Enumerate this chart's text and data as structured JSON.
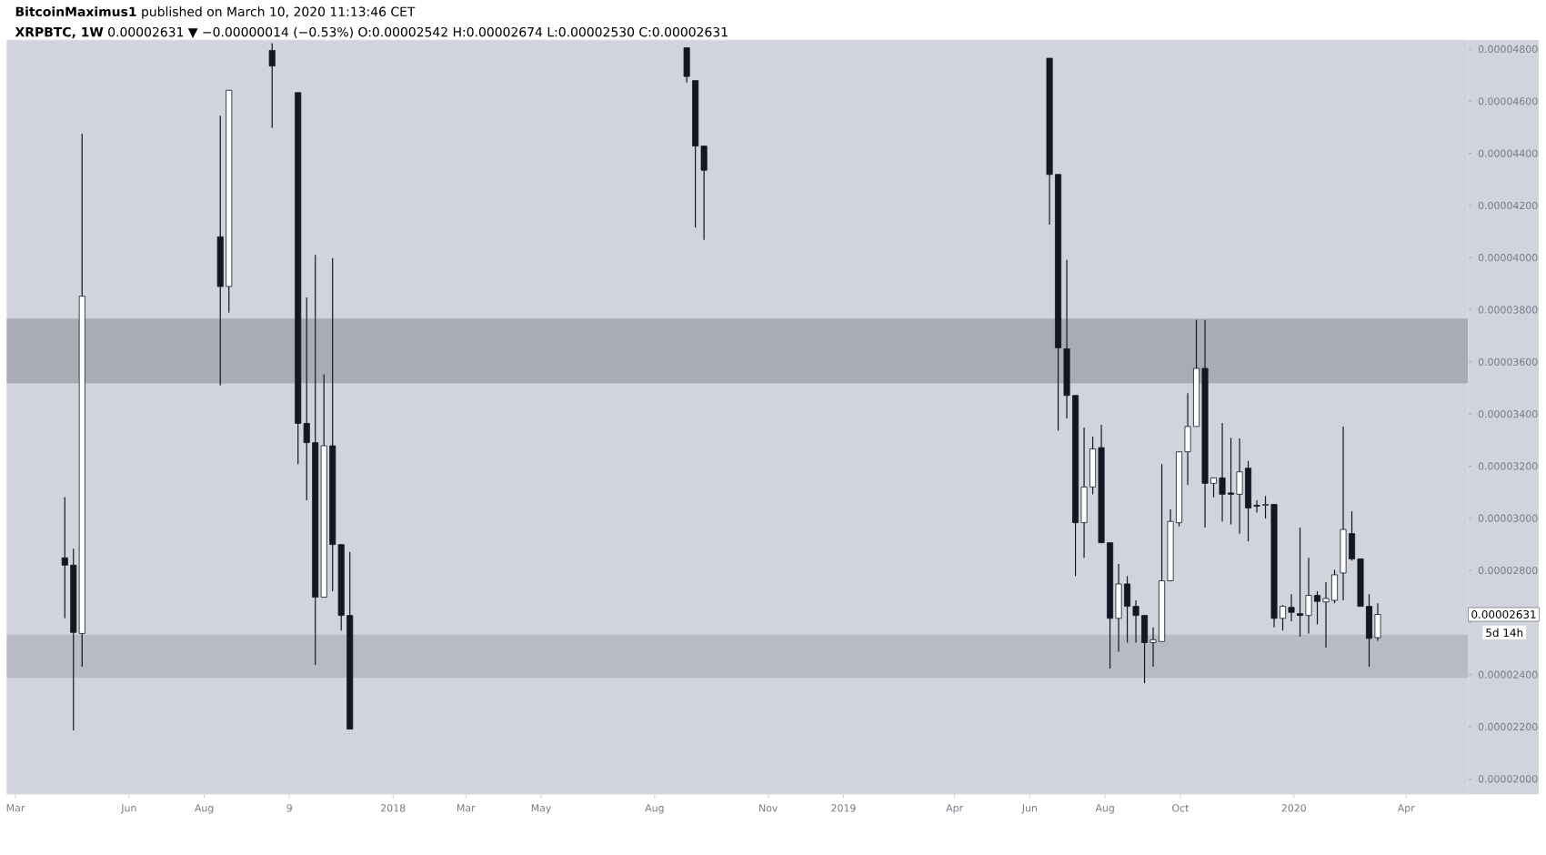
{
  "chart_data": {
    "type": "candlestick",
    "title": "**BitcoinMaximus1** published on March 10, 2020 11:13:46 CET",
    "subtitle": "**XRPBTC, 1W** 0.00002631 ▼ −0.00000014 (−0.53%) O:0.00002542 H:0.00002674 L:0.00002530 C:0.00002631",
    "x": [
      "2017-04-10",
      "2017-04-17",
      "2017-04-24",
      "2017-08-14",
      "2017-08-21",
      "2017-09-25",
      "2017-10-16",
      "2017-10-23",
      "2017-10-30",
      "2017-11-06",
      "2017-11-13",
      "2017-11-20",
      "2017-11-27",
      "2018-08-27",
      "2018-09-03",
      "2018-09-10",
      "2019-06-17",
      "2019-06-24",
      "2019-07-01",
      "2019-07-08",
      "2019-07-15",
      "2019-07-22",
      "2019-07-29",
      "2019-08-05",
      "2019-08-12",
      "2019-08-19",
      "2019-08-26",
      "2019-09-02",
      "2019-09-09",
      "2019-09-16",
      "2019-09-23",
      "2019-09-30",
      "2019-10-07",
      "2019-10-14",
      "2019-10-21",
      "2019-10-28",
      "2019-11-04",
      "2019-11-11",
      "2019-11-18",
      "2019-11-25",
      "2019-12-02",
      "2019-12-09",
      "2019-12-16",
      "2019-12-23",
      "2019-12-30",
      "2020-01-06",
      "2020-01-13",
      "2020-01-20",
      "2020-01-27",
      "2020-02-03",
      "2020-02-10",
      "2020-02-17",
      "2020-02-24",
      "2020-03-02",
      "2020-03-09"
    ],
    "ohlc": [
      [
        2.848e-05,
        3.081e-05,
        2.616e-05,
        2.82e-05
      ],
      [
        2.82e-05,
        2.883e-05,
        2.186e-05,
        2.562e-05
      ],
      [
        2.558e-05,
        4.475e-05,
        2.43e-05,
        3.852e-05
      ],
      [
        4.08e-05,
        4.544e-05,
        3.51e-05,
        3.889e-05
      ],
      [
        3.889e-05,
        4.642e-05,
        3.789e-05,
        4.642e-05
      ],
      [
        4.795e-05,
        4.823e-05,
        4.498e-05,
        4.735e-05
      ],
      [
        4.633e-05,
        4.633e-05,
        3.208e-05,
        3.364e-05
      ],
      [
        3.364e-05,
        3.847e-05,
        3.069e-05,
        3.29e-05
      ],
      [
        3.29e-05,
        4.01e-05,
        2.437e-05,
        2.697e-05
      ],
      [
        2.697e-05,
        3.552e-05,
        2.697e-05,
        3.278e-05
      ],
      [
        3.278e-05,
        3.998e-05,
        2.72e-05,
        2.899e-05
      ],
      [
        2.899e-05,
        2.899e-05,
        2.569e-05,
        2.627e-05
      ],
      [
        2.627e-05,
        2.871e-05,
        2.191e-05,
        2.191e-05
      ],
      [
        4.805e-05,
        4.805e-05,
        4.672e-05,
        4.695e-05
      ],
      [
        4.679e-05,
        4.679e-05,
        4.115e-05,
        4.428e-05
      ],
      [
        4.428e-05,
        4.428e-05,
        4.068e-05,
        4.335e-05
      ],
      [
        4.765e-05,
        4.765e-05,
        4.126e-05,
        4.319e-05
      ],
      [
        4.319e-05,
        4.319e-05,
        3.336e-05,
        3.654e-05
      ],
      [
        3.65e-05,
        3.991e-05,
        3.383e-05,
        3.471e-05
      ],
      [
        3.471e-05,
        3.471e-05,
        2.778e-05,
        2.983e-05
      ],
      [
        2.983e-05,
        3.348e-05,
        2.848e-05,
        3.12e-05
      ],
      [
        3.12e-05,
        3.313e-05,
        3.092e-05,
        3.266e-05
      ],
      [
        3.271e-05,
        3.359e-05,
        2.906e-05,
        2.906e-05
      ],
      [
        2.906e-05,
        2.906e-05,
        2.423e-05,
        2.616e-05
      ],
      [
        2.616e-05,
        2.825e-05,
        2.488e-05,
        2.748e-05
      ],
      [
        2.748e-05,
        2.778e-05,
        2.523e-05,
        2.662e-05
      ],
      [
        2.662e-05,
        2.685e-05,
        2.523e-05,
        2.627e-05
      ],
      [
        2.627e-05,
        2.627e-05,
        2.367e-05,
        2.523e-05
      ],
      [
        2.523e-05,
        2.581e-05,
        2.43e-05,
        2.534e-05
      ],
      [
        2.527e-05,
        3.208e-05,
        2.527e-05,
        2.76e-05
      ],
      [
        2.76e-05,
        3.034e-05,
        2.76e-05,
        2.988e-05
      ],
      [
        2.983e-05,
        3.255e-05,
        2.969e-05,
        3.255e-05
      ],
      [
        3.255e-05,
        3.48e-05,
        3.127e-05,
        3.352e-05
      ],
      [
        3.352e-05,
        3.761e-05,
        3.352e-05,
        3.575e-05
      ],
      [
        3.575e-05,
        3.761e-05,
        2.964e-05,
        3.134e-05
      ],
      [
        3.134e-05,
        3.155e-05,
        3.081e-05,
        3.155e-05
      ],
      [
        3.155e-05,
        3.366e-05,
        2.988e-05,
        3.092e-05
      ],
      [
        3.097e-05,
        3.308e-05,
        2.976e-05,
        3.092e-05
      ],
      [
        3.092e-05,
        3.306e-05,
        2.941e-05,
        3.178e-05
      ],
      [
        3.192e-05,
        3.22e-05,
        2.911e-05,
        3.039e-05
      ],
      [
        3.05e-05,
        3.069e-05,
        3.022e-05,
        3.046e-05
      ],
      [
        3.05e-05,
        3.085e-05,
        2.999e-05,
        3.053e-05
      ],
      [
        3.053e-05,
        3.053e-05,
        2.581e-05,
        2.616e-05
      ],
      [
        2.616e-05,
        2.667e-05,
        2.569e-05,
        2.662e-05
      ],
      [
        2.658e-05,
        2.709e-05,
        2.604e-05,
        2.639e-05
      ],
      [
        2.634e-05,
        2.964e-05,
        2.546e-05,
        2.627e-05
      ],
      [
        2.627e-05,
        2.848e-05,
        2.558e-05,
        2.704e-05
      ],
      [
        2.704e-05,
        2.72e-05,
        2.593e-05,
        2.681e-05
      ],
      [
        2.679e-05,
        2.755e-05,
        2.504e-05,
        2.692e-05
      ],
      [
        2.685e-05,
        2.802e-05,
        2.674e-05,
        2.783e-05
      ],
      [
        2.79e-05,
        3.352e-05,
        2.685e-05,
        2.957e-05
      ],
      [
        2.941e-05,
        3.027e-05,
        2.837e-05,
        2.844e-05
      ],
      [
        2.844e-05,
        2.844e-05,
        2.662e-05,
        2.662e-05
      ],
      [
        2.662e-05,
        2.709e-05,
        2.43e-05,
        2.539e-05
      ],
      [
        2.542e-05,
        2.674e-05,
        2.53e-05,
        2.631e-05
      ]
    ],
    "xlim": [
      "2017-02-22",
      "2020-05-21"
    ],
    "xticks": [
      {
        "value": "2017-03-01",
        "label": "Mar"
      },
      {
        "value": "2017-06-01",
        "label": "Jun"
      },
      {
        "value": "2017-08-01",
        "label": "Aug"
      },
      {
        "value": "2017-10-09",
        "label": "9"
      },
      {
        "value": "2018-01-01",
        "label": "2018"
      },
      {
        "value": "2018-03-01",
        "label": "Mar"
      },
      {
        "value": "2018-05-01",
        "label": "May"
      },
      {
        "value": "2018-08-01",
        "label": "Aug"
      },
      {
        "value": "2018-11-01",
        "label": "Nov"
      },
      {
        "value": "2019-01-01",
        "label": "2019"
      },
      {
        "value": "2019-04-01",
        "label": "Apr"
      },
      {
        "value": "2019-06-01",
        "label": "Jun"
      },
      {
        "value": "2019-08-01",
        "label": "Aug"
      },
      {
        "value": "2019-10-01",
        "label": "Oct"
      },
      {
        "value": "2020-01-01",
        "label": "2020"
      },
      {
        "value": "2020-04-01",
        "label": "Apr"
      }
    ],
    "ylim": [
      1.941e-05,
      4.835e-05
    ],
    "yticks": [
      {
        "value": 2e-05,
        "label": "0.00002000"
      },
      {
        "value": 2.2e-05,
        "label": "0.00002200"
      },
      {
        "value": 2.4e-05,
        "label": "0.00002400"
      },
      {
        "value": 2.6e-05,
        "label": null
      },
      {
        "value": 2.8e-05,
        "label": "0.00002800"
      },
      {
        "value": 3e-05,
        "label": "0.00003000"
      },
      {
        "value": 3.2e-05,
        "label": "0.00003200"
      },
      {
        "value": 3.4e-05,
        "label": "0.00003400"
      },
      {
        "value": 3.6e-05,
        "label": "0.00003600"
      },
      {
        "value": 3.8e-05,
        "label": "0.00003800"
      },
      {
        "value": 4e-05,
        "label": "0.00004000"
      },
      {
        "value": 4.2e-05,
        "label": "0.00004200"
      },
      {
        "value": 4.4e-05,
        "label": "0.00004400"
      },
      {
        "value": 4.6e-05,
        "label": "0.00004600"
      },
      {
        "value": 4.8e-05,
        "label": "0.00004800"
      }
    ],
    "bands": [
      {
        "axis": "y",
        "from": 3.517e-05,
        "to": 3.766e-05,
        "color": "#a9acb4"
      },
      {
        "axis": "y",
        "from": 2.388e-05,
        "to": 2.553e-05,
        "color": "#b8bbc3"
      }
    ],
    "annotations": [
      "0.00002631",
      "5d 14h"
    ]
  }
}
